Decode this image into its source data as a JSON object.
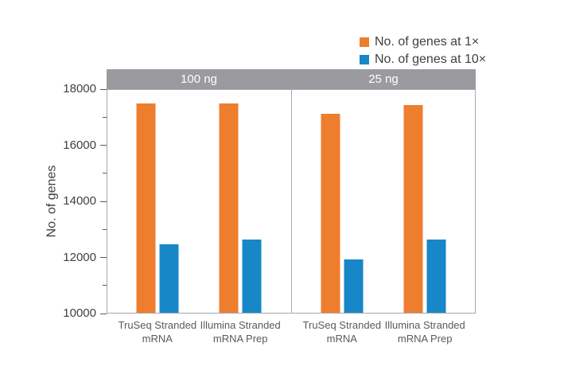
{
  "chart_data": {
    "type": "bar",
    "title": "",
    "ylabel": "No. of genes",
    "ylim": [
      10000,
      18000
    ],
    "yticks": [
      10000,
      12000,
      14000,
      16000,
      18000
    ],
    "minor_yticks": [
      11000,
      13000,
      15000,
      17000
    ],
    "grid": false,
    "legend_position": "top-right",
    "panels": [
      {
        "header": "100 ng",
        "categories": [
          "TruSeq Stranded mRNA",
          "Illumina Stranded mRNA Prep"
        ]
      },
      {
        "header": "25 ng",
        "categories": [
          "TruSeq Stranded mRNA",
          "Illumina Stranded mRNA Prep"
        ]
      }
    ],
    "series": [
      {
        "name": "No. of genes at 1×",
        "color": "#ee7d2e",
        "values_by_panel": [
          [
            17450,
            17450
          ],
          [
            17100,
            17400
          ]
        ]
      },
      {
        "name": "No. of genes at 10×",
        "color": "#1787c8",
        "values_by_panel": [
          [
            12450,
            12600
          ],
          [
            11900,
            12600
          ]
        ]
      }
    ]
  },
  "colors": {
    "background": "#ffffff",
    "header_band": "#9a9b9e",
    "header_text": "#ffffff",
    "frame_border": "#a7a9ac",
    "tick": "#58595b",
    "tick_label": "#414042",
    "axis_title": "#414042",
    "category_label": "#595a5c",
    "legend_text": "#414042"
  }
}
